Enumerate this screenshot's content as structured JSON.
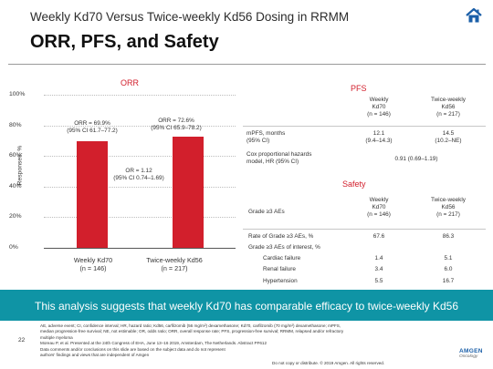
{
  "header": {
    "subtitle": "Weekly Kd70 Versus Twice-weekly Kd56 Dosing in RRMM",
    "title": "ORR, PFS, and Safety"
  },
  "orr": {
    "panel_title": "ORR",
    "y_axis_label": "Responses, %",
    "annotations": {
      "left_line1": "ORR = 69.9%",
      "left_line2": "(95% CI 61.7–77.2)",
      "right_line1": "ORR = 72.6%",
      "right_line2": "(95% CI 65.9–78.2)",
      "odds_line1": "OR = 1.12",
      "odds_line2": "(95% CI 0.74–1.69)"
    },
    "bar_labels": [
      {
        "line1": "Weekly Kd70",
        "line2": "(n = 146)"
      },
      {
        "line1": "Twice-weekly Kd56",
        "line2": "(n = 217)"
      }
    ]
  },
  "chart_data": {
    "type": "bar",
    "title": "ORR",
    "ylabel": "Responses, %",
    "ylim": [
      0,
      100
    ],
    "yticks": [
      "100%",
      "80%",
      "60%",
      "40%",
      "20%",
      "0%"
    ],
    "categories": [
      "Weekly Kd70 (n = 146)",
      "Twice-weekly Kd56 (n = 217)"
    ],
    "values": [
      69.9,
      72.6
    ],
    "grid": true
  },
  "pfs": {
    "panel_title": "PFS",
    "col_headers": [
      {
        "line1": "Weekly",
        "line2": "Kd70",
        "line3": "(n = 146)"
      },
      {
        "line1": "Twice-weekly",
        "line2": "Kd56",
        "line3": "(n = 217)"
      }
    ],
    "rows": [
      {
        "label1": "mPFS, months",
        "label2": "(95% CI)",
        "v1a": "12.1",
        "v1b": "(9.4–14.3)",
        "v2a": "14.5",
        "v2b": "(10.2–NE)"
      },
      {
        "label1": "Cox proportional hazards",
        "label2": "model, HR (95% CI)",
        "merged": "0.91 (0.69–1.19)"
      }
    ]
  },
  "safety": {
    "panel_title": "Safety",
    "section_label": "Grade ≥3 AEs",
    "col_headers": [
      {
        "line1": "Weekly",
        "line2": "Kd70",
        "line3": "(n = 146)"
      },
      {
        "line1": "Twice-weekly",
        "line2": "Kd56",
        "line3": "(n = 217)"
      }
    ],
    "rows": [
      {
        "label": "Rate of Grade ≥3 AEs, %",
        "v1": "67.6",
        "v2": "86.3"
      },
      {
        "label": "Grade ≥3 AEs of interest, %",
        "v1": "",
        "v2": ""
      },
      {
        "label": "Cardiac failure",
        "v1": "1.4",
        "v2": "5.1"
      },
      {
        "label": "Renal failure",
        "v1": "3.4",
        "v2": "6.0"
      },
      {
        "label": "Hypertension",
        "v1": "5.5",
        "v2": "16.7"
      }
    ]
  },
  "banner": {
    "text": "This analysis suggests that weekly Kd70 has comparable efficacy to twice-weekly Kd56"
  },
  "footer": {
    "page_number": "22",
    "lines": [
      "AE, adverse event; CI, confidence interval; HR, hazard ratio; Kd56, carfilzomib (56 mg/m²) dexamethasone; Kd70, carfilzomib (70 mg/m²) dexamethasone; mPFS,",
      "median progression-free survival; NE, not estimable; OR, odds ratio; ORR, overall response rate; PFS, progression-free survival; RRMM, relapsed and/or refractory",
      "multiple myeloma",
      "Moreau P, et al. Presented at the 24th Congress of EHA, June 13–16 2019, Amsterdam, The Netherlands. Abstract PF612",
      "Data comments and/or conclusions on this slide are based on the subject data and do not represent",
      "authors' findings and views that are independent of Amgen"
    ],
    "confidential": "Do not copy or distribute. © 2019 Amgen. All rights reserved.",
    "logo_text": "AMGEN",
    "logo_sub": "Oncology"
  },
  "colors": {
    "accent_red": "#d21f2c",
    "banner_teal": "#0f94a5"
  }
}
